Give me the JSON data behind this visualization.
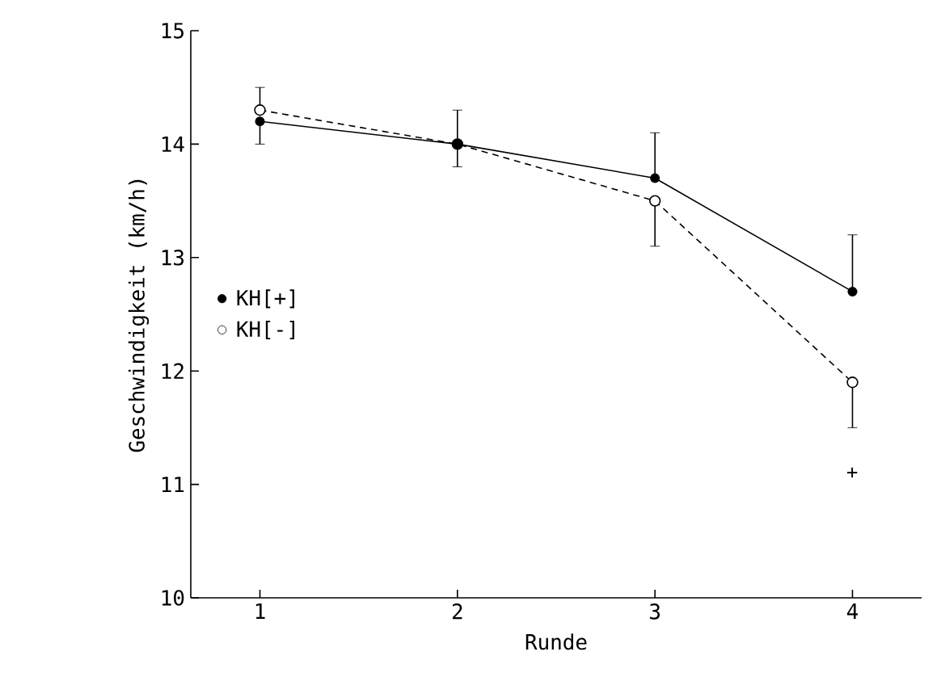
{
  "chart_data": {
    "type": "line",
    "xlabel": "Runde",
    "ylabel": "Geschwindigkeit (km/h)",
    "x": [
      1,
      2,
      3,
      4
    ],
    "series": [
      {
        "name": "KH[+]",
        "color": "#000000",
        "values": [
          14.2,
          14.0,
          13.7,
          12.7
        ],
        "errors": [
          [
            14.0,
            14.2
          ],
          [
            14.0,
            14.3
          ],
          [
            13.7,
            14.1
          ],
          [
            12.7,
            13.2
          ]
        ],
        "line_style": "solid",
        "marker": "circle"
      },
      {
        "name": "KH[-]",
        "color": "#000000",
        "values": [
          14.3,
          14.0,
          13.5,
          11.9
        ],
        "errors": [
          [
            14.3,
            14.5
          ],
          [
            13.8,
            14.0
          ],
          [
            13.1,
            13.5
          ],
          [
            11.5,
            11.9
          ]
        ],
        "line_style": "dashed",
        "marker": "circle"
      }
    ],
    "xlim": [
      0.65,
      4.35
    ],
    "xticks": [
      1,
      2,
      3,
      4
    ],
    "ylim": [
      10,
      15
    ],
    "yticks": [
      10,
      11,
      12,
      13,
      14,
      15
    ],
    "annotations": [
      "+"
    ],
    "legend": "center left",
    "grid": false
  }
}
